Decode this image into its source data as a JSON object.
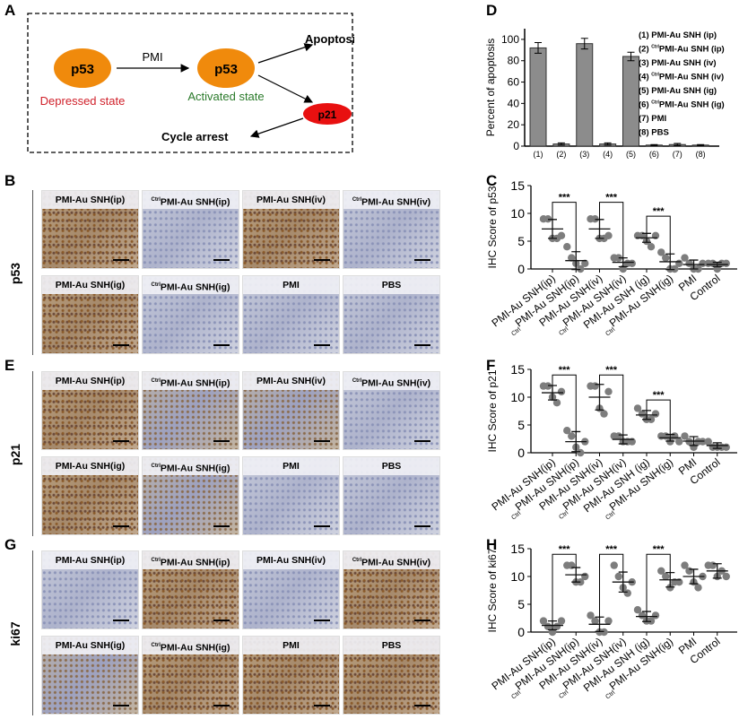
{
  "panel_letters": {
    "A": "A",
    "B": "B",
    "C": "C",
    "D": "D",
    "E": "E",
    "F": "F",
    "G": "G",
    "H": "H"
  },
  "diagram": {
    "node_p53_left": "p53",
    "state_left": "Depressed state",
    "arrow_label": "PMI",
    "node_p53_right": "p53",
    "state_right": "Activated state",
    "apoptosis": "Apoptosis",
    "node_p21": "p21",
    "cycle_arrest": "Cycle arrest",
    "colors": {
      "node": "#f08a0c",
      "p21": "#e81010",
      "depressed": "#d0202a",
      "activated": "#2a7a2a"
    }
  },
  "micro": {
    "p53": {
      "row_label": "p53",
      "tiles": [
        {
          "pre": "",
          "name": "PMI-Au SNH(ip)",
          "tone": "brown"
        },
        {
          "pre": "Ctrl",
          "name": "PMI-Au SNH(ip)",
          "tone": "blue"
        },
        {
          "pre": "",
          "name": "PMI-Au SNH(iv)",
          "tone": "brown"
        },
        {
          "pre": "Ctrl",
          "name": "PMI-Au SNH(iv)",
          "tone": "blue"
        },
        {
          "pre": "",
          "name": "PMI-Au SNH(ig)",
          "tone": "brown"
        },
        {
          "pre": "Ctrl",
          "name": "PMI-Au SNH(ig)",
          "tone": "blue"
        },
        {
          "pre": "",
          "name": "PMI",
          "tone": "blue"
        },
        {
          "pre": "",
          "name": "PBS",
          "tone": "blue"
        }
      ]
    },
    "p21": {
      "row_label": "p21",
      "tiles": [
        {
          "pre": "",
          "name": "PMI-Au SNH(ip)",
          "tone": "brown"
        },
        {
          "pre": "Ctrl",
          "name": "PMI-Au SNH(ip)",
          "tone": "mix"
        },
        {
          "pre": "",
          "name": "PMI-Au SNH(iv)",
          "tone": "mix"
        },
        {
          "pre": "Ctrl",
          "name": "PMI-Au SNH(iv)",
          "tone": "blue"
        },
        {
          "pre": "",
          "name": "PMI-Au SNH(ig)",
          "tone": "brown"
        },
        {
          "pre": "Ctrl",
          "name": "PMI-Au SNH(ig)",
          "tone": "mix"
        },
        {
          "pre": "",
          "name": "PMI",
          "tone": "blue"
        },
        {
          "pre": "",
          "name": "PBS",
          "tone": "blue"
        }
      ]
    },
    "ki67": {
      "row_label": "ki67",
      "tiles": [
        {
          "pre": "",
          "name": "PMI-Au SNH(ip)",
          "tone": "blue"
        },
        {
          "pre": "Ctrl",
          "name": "PMI-Au SNH(ip)",
          "tone": "brown"
        },
        {
          "pre": "",
          "name": "PMI-Au SNH(iv)",
          "tone": "blue"
        },
        {
          "pre": "Ctrl",
          "name": "PMI-Au SNH(iv)",
          "tone": "brown"
        },
        {
          "pre": "",
          "name": "PMI-Au SNH(ig)",
          "tone": "mix"
        },
        {
          "pre": "Ctrl",
          "name": "PMI-Au SNH(ig)",
          "tone": "brown"
        },
        {
          "pre": "",
          "name": "PMI",
          "tone": "brown"
        },
        {
          "pre": "",
          "name": "PBS",
          "tone": "brown"
        }
      ]
    }
  },
  "chart_data": [
    {
      "id": "D",
      "type": "bar",
      "ylabel": "Percent of apoptosis",
      "ylim": [
        0,
        110
      ],
      "yticks": [
        0,
        20,
        40,
        60,
        80,
        100
      ],
      "categories": [
        "(1)",
        "(2)",
        "(3)",
        "(4)",
        "(5)",
        "(6)",
        "(7)",
        "(8)"
      ],
      "values": [
        92,
        2,
        96,
        2,
        84,
        1,
        1.5,
        1
      ],
      "errors": [
        5,
        1,
        5,
        1,
        4,
        0.5,
        1,
        0.5
      ],
      "bar_color": "#8c8c8c",
      "legend": [
        {
          "num": "(1)",
          "pre": "",
          "name": "PMI-Au SNH (ip)"
        },
        {
          "num": "(2)",
          "pre": "Ctrl",
          "name": "PMI-Au SNH (ip)"
        },
        {
          "num": "(3)",
          "pre": "",
          "name": "PMI-Au SNH (iv)"
        },
        {
          "num": "(4)",
          "pre": "Ctrl",
          "name": "PMI-Au SNH (iv)"
        },
        {
          "num": "(5)",
          "pre": "",
          "name": "PMI-Au SNH (ig)"
        },
        {
          "num": "(6)",
          "pre": "Ctrl",
          "name": "PMI-Au SNH (ig)"
        },
        {
          "num": "(7)",
          "pre": "",
          "name": "PMI"
        },
        {
          "num": "(8)",
          "pre": "",
          "name": "PBS"
        }
      ]
    },
    {
      "id": "C",
      "type": "scatter",
      "ylabel": "IHC Score of p53",
      "ylim": [
        0,
        15
      ],
      "yticks": [
        0,
        5,
        10,
        15
      ],
      "categories": [
        {
          "pre": "",
          "name": "PMI-Au SNH(ip)"
        },
        {
          "pre": "Ctrl",
          "name": "PMI-Au SNH(ip)"
        },
        {
          "pre": "",
          "name": "PMI-Au SNH(iv)"
        },
        {
          "pre": "Ctrl",
          "name": "PMI-Au SNH(iv)"
        },
        {
          "pre": "",
          "name": "PMI-Au SNH (ig)"
        },
        {
          "pre": "Ctrl",
          "name": "PMI-Au SNH(ig)"
        },
        {
          "pre": "",
          "name": "PMI"
        },
        {
          "pre": "",
          "name": "Control"
        }
      ],
      "means": [
        7.2,
        1.5,
        7.2,
        1.2,
        5.6,
        1.3,
        0.8,
        0.8
      ],
      "sd": [
        1.7,
        1.6,
        1.7,
        0.8,
        0.8,
        1.4,
        0.8,
        0.4
      ],
      "points": [
        [
          9,
          9,
          5.5,
          5.5,
          6
        ],
        [
          4,
          2,
          1,
          0,
          1
        ],
        [
          9,
          9,
          5.5,
          5.5,
          6
        ],
        [
          2,
          2,
          0,
          1,
          1
        ],
        [
          6,
          6,
          5,
          4,
          6
        ],
        [
          3,
          2,
          0,
          0,
          1
        ],
        [
          2,
          1,
          0,
          0,
          1
        ],
        [
          1,
          1,
          0,
          1,
          1
        ]
      ],
      "significance": [
        {
          "pair": [
            0,
            1
          ],
          "label": "***",
          "y": 12
        },
        {
          "pair": [
            2,
            3
          ],
          "label": "***",
          "y": 12
        },
        {
          "pair": [
            4,
            5
          ],
          "label": "***",
          "y": 9.5
        }
      ]
    },
    {
      "id": "F",
      "type": "scatter",
      "ylabel": "IHC Score of p21",
      "ylim": [
        0,
        15
      ],
      "yticks": [
        0,
        5,
        10,
        15
      ],
      "categories": [
        {
          "pre": "",
          "name": "PMI-Au SNH(ip)"
        },
        {
          "pre": "Ctrl",
          "name": "PMI-Au SNH(ip)"
        },
        {
          "pre": "",
          "name": "PMI-Au SNH(iv)"
        },
        {
          "pre": "Ctrl",
          "name": "PMI-Au SNH(iv)"
        },
        {
          "pre": "",
          "name": "PMI-Au SNH (ig)"
        },
        {
          "pre": "Ctrl",
          "name": "PMI-Au SNH(ig)"
        },
        {
          "pre": "",
          "name": "PMI"
        },
        {
          "pre": "",
          "name": "Control"
        }
      ],
      "means": [
        10.8,
        2,
        10,
        2.4,
        6.8,
        2.7,
        2.1,
        1.3
      ],
      "sd": [
        1.3,
        1.8,
        2.3,
        0.8,
        0.8,
        0.6,
        0.8,
        0.5
      ],
      "points": [
        [
          12,
          12,
          10,
          9,
          11
        ],
        [
          4,
          3,
          1,
          0,
          2
        ],
        [
          12,
          12,
          8,
          7,
          11
        ],
        [
          3,
          3,
          2,
          2,
          2
        ],
        [
          8,
          7,
          6,
          6,
          7
        ],
        [
          3,
          3,
          2,
          3,
          2
        ],
        [
          3,
          2,
          1,
          2,
          2
        ],
        [
          2,
          1,
          1,
          1,
          1
        ]
      ],
      "significance": [
        {
          "pair": [
            0,
            1
          ],
          "label": "***",
          "y": 14
        },
        {
          "pair": [
            2,
            3
          ],
          "label": "***",
          "y": 14
        },
        {
          "pair": [
            4,
            5
          ],
          "label": "***",
          "y": 9.5
        }
      ]
    },
    {
      "id": "H",
      "type": "scatter",
      "ylabel": "IHC Score of ki67",
      "ylim": [
        0,
        15
      ],
      "yticks": [
        0,
        5,
        10,
        15
      ],
      "categories": [
        {
          "pre": "",
          "name": "PMI-Au SNH(ip)"
        },
        {
          "pre": "Ctrl",
          "name": "PMI-Au SNH(ip)"
        },
        {
          "pre": "",
          "name": "PMI-Au SNH(iv)"
        },
        {
          "pre": "Ctrl",
          "name": "PMI-Au SNH(iv)"
        },
        {
          "pre": "",
          "name": "PMI-Au SNH (ig)"
        },
        {
          "pre": "Ctrl",
          "name": "PMI-Au SNH(ig)"
        },
        {
          "pre": "",
          "name": "PMI"
        },
        {
          "pre": "",
          "name": "Control"
        }
      ],
      "means": [
        1.2,
        10.3,
        1.4,
        9,
        2.8,
        9.4,
        10,
        11
      ],
      "sd": [
        0.8,
        1.3,
        1.3,
        1.8,
        0.9,
        1.3,
        1.3,
        1.3
      ],
      "points": [
        [
          2,
          1,
          0,
          1,
          2
        ],
        [
          12,
          12,
          9,
          9,
          10
        ],
        [
          3,
          2,
          0,
          0,
          2
        ],
        [
          12,
          10,
          8,
          7,
          9
        ],
        [
          4,
          3,
          2,
          2,
          3
        ],
        [
          11,
          10,
          8,
          9,
          9
        ],
        [
          12,
          11,
          9,
          8,
          10
        ],
        [
          12,
          12,
          10,
          11,
          10
        ]
      ],
      "significance": [
        {
          "pair": [
            0,
            1
          ],
          "label": "***",
          "y": 14
        },
        {
          "pair": [
            2,
            3
          ],
          "label": "***",
          "y": 14
        },
        {
          "pair": [
            4,
            5
          ],
          "label": "***",
          "y": 14
        }
      ]
    }
  ]
}
